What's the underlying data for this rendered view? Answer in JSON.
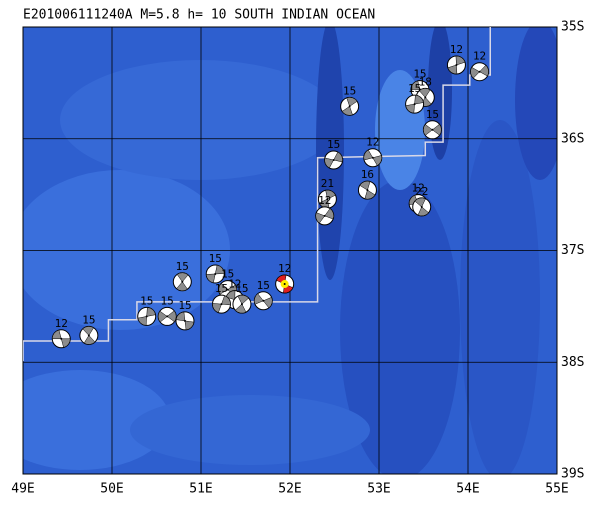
{
  "map": {
    "title": "E201006111240A M=5.8 h= 10 SOUTH INDIAN OCEAN",
    "lonlim": [
      49,
      55
    ],
    "latlim": [
      35,
      39
    ],
    "lonticks": [
      {
        "value": 49,
        "label": "49E"
      },
      {
        "value": 50,
        "label": "50E"
      },
      {
        "value": 51,
        "label": "51E"
      },
      {
        "value": 52,
        "label": "52E"
      },
      {
        "value": 53,
        "label": "53E"
      },
      {
        "value": 54,
        "label": "54E"
      },
      {
        "value": 55,
        "label": "55E"
      }
    ],
    "latticks": [
      {
        "value": 35,
        "label": "35S"
      },
      {
        "value": 36,
        "label": "36S"
      },
      {
        "value": 37,
        "label": "37S"
      },
      {
        "value": 38,
        "label": "38S"
      },
      {
        "value": 39,
        "label": "39S"
      }
    ],
    "grid": true,
    "ball_color": "#8c8c8c",
    "boundary_color": "#d8d8e8",
    "plate_boundary": {
      "lon": [
        49.0,
        49.0,
        49.96,
        49.96,
        50.28,
        50.28,
        52.31,
        52.31,
        53.52,
        53.52,
        53.72,
        53.72,
        54.02,
        54.02,
        54.25,
        54.25
      ],
      "lat": [
        37.99,
        37.81,
        37.81,
        37.62,
        37.62,
        37.46,
        37.46,
        36.17,
        36.15,
        36.03,
        36.03,
        35.52,
        35.52,
        35.43,
        35.43,
        35.0
      ]
    },
    "events": [
      {
        "lon": 49.43,
        "lat": 37.79,
        "depth": 12
      },
      {
        "lon": 49.74,
        "lat": 37.76,
        "depth": 15
      },
      {
        "lon": 50.39,
        "lat": 37.59,
        "depth": 15
      },
      {
        "lon": 50.62,
        "lat": 37.59,
        "depth": 15
      },
      {
        "lon": 50.82,
        "lat": 37.63,
        "depth": 15
      },
      {
        "lon": 50.79,
        "lat": 37.28,
        "depth": 15
      },
      {
        "lon": 51.16,
        "lat": 37.21,
        "depth": 15
      },
      {
        "lon": 51.3,
        "lat": 37.35,
        "depth": 15
      },
      {
        "lon": 51.38,
        "lat": 37.44,
        "depth": 12
      },
      {
        "lon": 51.46,
        "lat": 37.48,
        "depth": 15
      },
      {
        "lon": 51.23,
        "lat": 37.48,
        "depth": 15
      },
      {
        "lon": 51.7,
        "lat": 37.45,
        "depth": 15
      },
      {
        "lon": 51.94,
        "lat": 37.3,
        "depth": 12,
        "color": "#e02020"
      },
      {
        "lon": 52.67,
        "lat": 35.71,
        "depth": 15
      },
      {
        "lon": 52.49,
        "lat": 36.19,
        "depth": 15
      },
      {
        "lon": 52.93,
        "lat": 36.17,
        "depth": 12
      },
      {
        "lon": 52.87,
        "lat": 36.46,
        "depth": 16
      },
      {
        "lon": 52.42,
        "lat": 36.54,
        "depth": 21
      },
      {
        "lon": 52.39,
        "lat": 36.69,
        "depth": 12
      },
      {
        "lon": 53.44,
        "lat": 36.58,
        "depth": 12
      },
      {
        "lon": 53.48,
        "lat": 36.61,
        "depth": 22
      },
      {
        "lon": 53.87,
        "lat": 35.34,
        "depth": 12
      },
      {
        "lon": 54.13,
        "lat": 35.4,
        "depth": 12
      },
      {
        "lon": 53.46,
        "lat": 35.56,
        "depth": 15
      },
      {
        "lon": 53.52,
        "lat": 35.63,
        "depth": 18
      },
      {
        "lon": 53.4,
        "lat": 35.69,
        "depth": 15
      },
      {
        "lon": 53.6,
        "lat": 35.92,
        "depth": 15
      }
    ]
  }
}
